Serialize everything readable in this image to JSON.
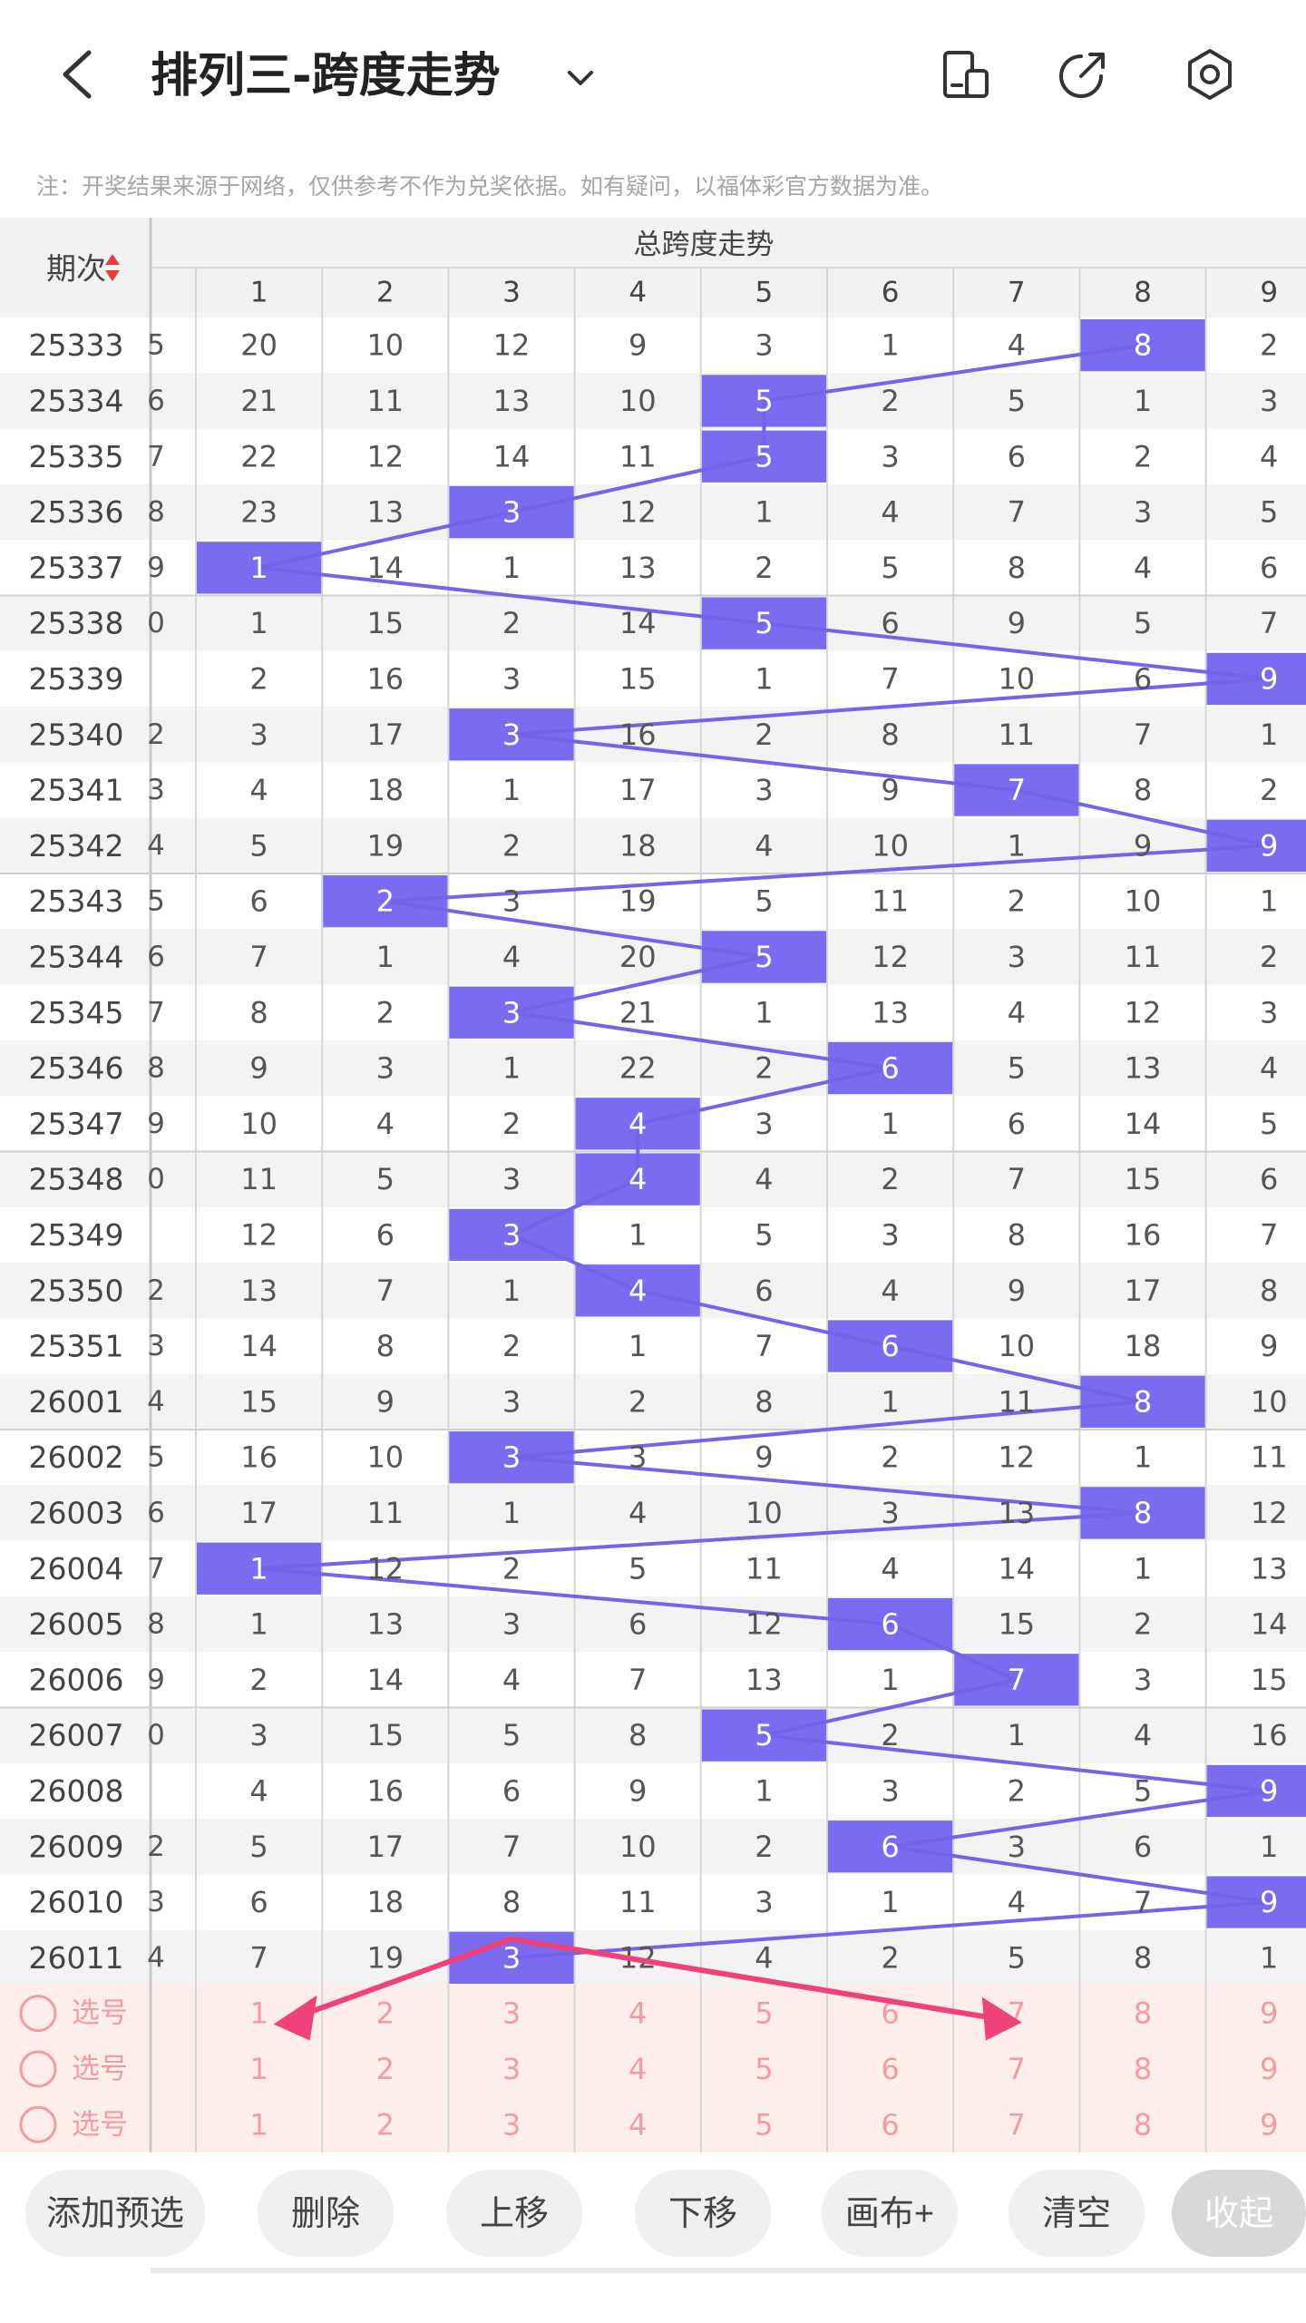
{
  "header": {
    "title": "排列三-跨度走势"
  },
  "note": "注：开奖结果来源于网络，仅供参考不作为兑奖依据。如有疑问，以福体彩官方数据为准。",
  "table": {
    "period_header": "期次",
    "group_header": "总跨度走势",
    "columns": [
      "1",
      "2",
      "3",
      "4",
      "5",
      "6",
      "7",
      "8",
      "9"
    ],
    "left_partial": [
      "5",
      "6",
      "7",
      "8",
      "9",
      "0",
      "",
      "2",
      "3",
      "4",
      "5",
      "6",
      "7",
      "8",
      "9",
      "0",
      "",
      "2",
      "3",
      "4",
      "5",
      "6",
      "7",
      "8",
      "9",
      "0",
      "",
      "2",
      "3",
      "4"
    ],
    "rows": [
      {
        "period": "25333",
        "span": 8,
        "values": [
          "20",
          "10",
          "12",
          "9",
          "3",
          "1",
          "4",
          "8",
          "2"
        ]
      },
      {
        "period": "25334",
        "span": 5,
        "values": [
          "21",
          "11",
          "13",
          "10",
          "5",
          "2",
          "5",
          "1",
          "3"
        ]
      },
      {
        "period": "25335",
        "span": 5,
        "values": [
          "22",
          "12",
          "14",
          "11",
          "5",
          "3",
          "6",
          "2",
          "4"
        ]
      },
      {
        "period": "25336",
        "span": 3,
        "values": [
          "23",
          "13",
          "3",
          "12",
          "1",
          "4",
          "7",
          "3",
          "5"
        ]
      },
      {
        "period": "25337",
        "span": 1,
        "values": [
          "1",
          "14",
          "1",
          "13",
          "2",
          "5",
          "8",
          "4",
          "6"
        ]
      },
      {
        "period": "25338",
        "span": 5,
        "values": [
          "1",
          "15",
          "2",
          "14",
          "5",
          "6",
          "9",
          "5",
          "7"
        ]
      },
      {
        "period": "25339",
        "span": 9,
        "values": [
          "2",
          "16",
          "3",
          "15",
          "1",
          "7",
          "10",
          "6",
          "9"
        ]
      },
      {
        "period": "25340",
        "span": 3,
        "values": [
          "3",
          "17",
          "3",
          "16",
          "2",
          "8",
          "11",
          "7",
          "1"
        ]
      },
      {
        "period": "25341",
        "span": 7,
        "values": [
          "4",
          "18",
          "1",
          "17",
          "3",
          "9",
          "7",
          "8",
          "2"
        ]
      },
      {
        "period": "25342",
        "span": 9,
        "values": [
          "5",
          "19",
          "2",
          "18",
          "4",
          "10",
          "1",
          "9",
          "9"
        ]
      },
      {
        "period": "25343",
        "span": 2,
        "values": [
          "6",
          "2",
          "3",
          "19",
          "5",
          "11",
          "2",
          "10",
          "1"
        ]
      },
      {
        "period": "25344",
        "span": 5,
        "values": [
          "7",
          "1",
          "4",
          "20",
          "5",
          "12",
          "3",
          "11",
          "2"
        ]
      },
      {
        "period": "25345",
        "span": 3,
        "values": [
          "8",
          "2",
          "3",
          "21",
          "1",
          "13",
          "4",
          "12",
          "3"
        ]
      },
      {
        "period": "25346",
        "span": 6,
        "values": [
          "9",
          "3",
          "1",
          "22",
          "2",
          "6",
          "5",
          "13",
          "4"
        ]
      },
      {
        "period": "25347",
        "span": 4,
        "values": [
          "10",
          "4",
          "2",
          "4",
          "3",
          "1",
          "6",
          "14",
          "5"
        ]
      },
      {
        "period": "25348",
        "span": 4,
        "values": [
          "11",
          "5",
          "3",
          "4",
          "4",
          "2",
          "7",
          "15",
          "6"
        ]
      },
      {
        "period": "25349",
        "span": 3,
        "values": [
          "12",
          "6",
          "3",
          "1",
          "5",
          "3",
          "8",
          "16",
          "7"
        ]
      },
      {
        "period": "25350",
        "span": 4,
        "values": [
          "13",
          "7",
          "1",
          "4",
          "6",
          "4",
          "9",
          "17",
          "8"
        ]
      },
      {
        "period": "25351",
        "span": 6,
        "values": [
          "14",
          "8",
          "2",
          "1",
          "7",
          "6",
          "10",
          "18",
          "9"
        ]
      },
      {
        "period": "26001",
        "span": 8,
        "values": [
          "15",
          "9",
          "3",
          "2",
          "8",
          "1",
          "11",
          "8",
          "10"
        ]
      },
      {
        "period": "26002",
        "span": 3,
        "values": [
          "16",
          "10",
          "3",
          "3",
          "9",
          "2",
          "12",
          "1",
          "11"
        ]
      },
      {
        "period": "26003",
        "span": 8,
        "values": [
          "17",
          "11",
          "1",
          "4",
          "10",
          "3",
          "13",
          "8",
          "12"
        ]
      },
      {
        "period": "26004",
        "span": 1,
        "values": [
          "1",
          "12",
          "2",
          "5",
          "11",
          "4",
          "14",
          "1",
          "13"
        ]
      },
      {
        "period": "26005",
        "span": 6,
        "values": [
          "1",
          "13",
          "3",
          "6",
          "12",
          "6",
          "15",
          "2",
          "14"
        ]
      },
      {
        "period": "26006",
        "span": 7,
        "values": [
          "2",
          "14",
          "4",
          "7",
          "13",
          "1",
          "7",
          "3",
          "15"
        ]
      },
      {
        "period": "26007",
        "span": 5,
        "values": [
          "3",
          "15",
          "5",
          "8",
          "5",
          "2",
          "1",
          "4",
          "16"
        ]
      },
      {
        "period": "26008",
        "span": 9,
        "values": [
          "4",
          "16",
          "6",
          "9",
          "1",
          "3",
          "2",
          "5",
          "9"
        ]
      },
      {
        "period": "26009",
        "span": 6,
        "values": [
          "5",
          "17",
          "7",
          "10",
          "2",
          "6",
          "3",
          "6",
          "1"
        ]
      },
      {
        "period": "26010",
        "span": 9,
        "values": [
          "6",
          "18",
          "8",
          "11",
          "3",
          "1",
          "4",
          "7",
          "9"
        ]
      },
      {
        "period": "26011",
        "span": 3,
        "values": [
          "7",
          "19",
          "3",
          "12",
          "4",
          "2",
          "5",
          "8",
          "1"
        ]
      }
    ],
    "select_rows": [
      {
        "label": "选号",
        "values": [
          "1",
          "2",
          "3",
          "4",
          "5",
          "6",
          "7",
          "8",
          "9"
        ]
      },
      {
        "label": "选号",
        "values": [
          "1",
          "2",
          "3",
          "4",
          "5",
          "6",
          "7",
          "8",
          "9"
        ]
      },
      {
        "label": "选号",
        "values": [
          "1",
          "2",
          "3",
          "4",
          "5",
          "6",
          "7",
          "8",
          "9"
        ]
      }
    ]
  },
  "bottom_buttons": [
    "添加预选",
    "删除",
    "上移",
    "下移",
    "画布+",
    "清空",
    "收起"
  ],
  "colors": {
    "highlight": "#7b6bf0",
    "line": "#7563ea",
    "arrow": "#f0427a",
    "select_bg": "#fdeeea",
    "select_text": "#f29ca0",
    "row_alt": "#f3f3f3"
  }
}
